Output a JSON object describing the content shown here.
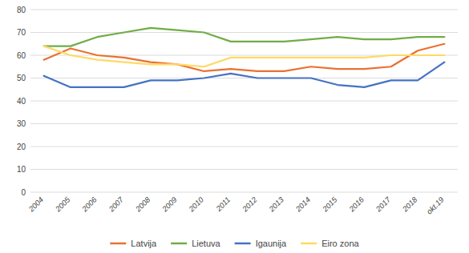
{
  "chart_data": {
    "type": "line",
    "categories": [
      "2004",
      "2005",
      "2006",
      "2007",
      "2008",
      "2009",
      "2010",
      "2011",
      "2012",
      "2013",
      "2014",
      "2015",
      "2016",
      "2017",
      "2018",
      "okt.19"
    ],
    "series": [
      {
        "name": "Latvija",
        "color": "#E97132",
        "values": [
          58,
          63,
          60,
          59,
          57,
          56,
          53,
          54,
          53,
          53,
          55,
          54,
          54,
          55,
          62,
          65
        ]
      },
      {
        "name": "Lietuva",
        "color": "#70AD47",
        "values": [
          64,
          64,
          68,
          70,
          72,
          71,
          70,
          66,
          66,
          66,
          67,
          68,
          67,
          67,
          68,
          68
        ]
      },
      {
        "name": "Igaunija",
        "color": "#4472C4",
        "values": [
          51,
          46,
          46,
          46,
          49,
          49,
          50,
          52,
          50,
          50,
          50,
          47,
          46,
          49,
          49,
          57
        ]
      },
      {
        "name": "Eiro zona",
        "color": "#FFD966",
        "values": [
          64,
          60,
          58,
          57,
          56,
          56,
          55,
          59,
          59,
          59,
          59,
          59,
          59,
          60,
          60,
          60
        ]
      }
    ],
    "ylim": [
      0,
      80
    ],
    "yticks": [
      0,
      10,
      20,
      30,
      40,
      50,
      60,
      70,
      80
    ],
    "grid": true,
    "legend": "bottom"
  }
}
